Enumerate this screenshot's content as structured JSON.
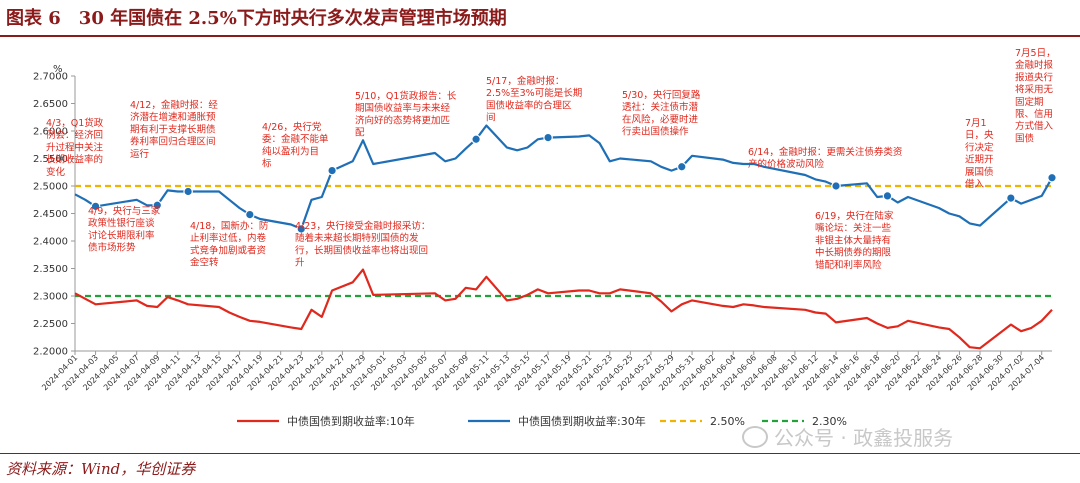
{
  "figure": {
    "title": "图表 6　30 年国债在 2.5%下方时央行多次发声管理市场预期",
    "source": "资料来源：Wind，华创证券",
    "watermark": "公众号 · 政鑫投服务"
  },
  "colors": {
    "title": "#8b1a1a",
    "series_10y": "#e0281d",
    "series_30y": "#1f6fb7",
    "ref_250": "#f0b400",
    "ref_230": "#22a33a",
    "annotation": "#e0281d"
  },
  "chart_data": {
    "type": "line",
    "ylabel": "%",
    "ylim": [
      2.2,
      2.7
    ],
    "yticks": [
      "2.2000",
      "2.2500",
      "2.3000",
      "2.3500",
      "2.4000",
      "2.4500",
      "2.5000",
      "2.5500",
      "2.6000",
      "2.6500",
      "2.7000"
    ],
    "xlim": [
      "2024-04-01",
      "2024-07-05"
    ],
    "xticks": [
      "2024-04-01",
      "2024-04-03",
      "2024-04-05",
      "2024-04-07",
      "2024-04-09",
      "2024-04-11",
      "2024-04-13",
      "2024-04-15",
      "2024-04-17",
      "2024-04-19",
      "2024-04-21",
      "2024-04-23",
      "2024-04-25",
      "2024-04-27",
      "2024-04-29",
      "2024-05-01",
      "2024-05-03",
      "2024-05-05",
      "2024-05-07",
      "2024-05-09",
      "2024-05-11",
      "2024-05-13",
      "2024-05-15",
      "2024-05-17",
      "2024-05-19",
      "2024-05-21",
      "2024-05-23",
      "2024-05-25",
      "2024-05-27",
      "2024-05-29",
      "2024-05-31",
      "2024-06-02",
      "2024-06-04",
      "2024-06-06",
      "2024-06-08",
      "2024-06-10",
      "2024-06-12",
      "2024-06-14",
      "2024-06-16",
      "2024-06-18",
      "2024-06-20",
      "2024-06-22",
      "2024-06-24",
      "2024-06-26",
      "2024-06-28",
      "2024-06-30",
      "2024-07-02",
      "2024-07-04"
    ],
    "grid": false,
    "legend_position": "bottom",
    "series": [
      {
        "name": "中债国债到期收益率:10年",
        "color": "#e0281d",
        "x": [
          "2024-04-01",
          "2024-04-02",
          "2024-04-03",
          "2024-04-07",
          "2024-04-08",
          "2024-04-09",
          "2024-04-10",
          "2024-04-11",
          "2024-04-12",
          "2024-04-15",
          "2024-04-16",
          "2024-04-17",
          "2024-04-18",
          "2024-04-19",
          "2024-04-22",
          "2024-04-23",
          "2024-04-24",
          "2024-04-25",
          "2024-04-26",
          "2024-04-28",
          "2024-04-29",
          "2024-04-30",
          "2024-05-06",
          "2024-05-07",
          "2024-05-08",
          "2024-05-09",
          "2024-05-10",
          "2024-05-11",
          "2024-05-13",
          "2024-05-14",
          "2024-05-15",
          "2024-05-16",
          "2024-05-17",
          "2024-05-20",
          "2024-05-21",
          "2024-05-22",
          "2024-05-23",
          "2024-05-24",
          "2024-05-27",
          "2024-05-28",
          "2024-05-29",
          "2024-05-30",
          "2024-05-31",
          "2024-06-03",
          "2024-06-04",
          "2024-06-05",
          "2024-06-06",
          "2024-06-07",
          "2024-06-11",
          "2024-06-12",
          "2024-06-13",
          "2024-06-14",
          "2024-06-17",
          "2024-06-18",
          "2024-06-19",
          "2024-06-20",
          "2024-06-21",
          "2024-06-24",
          "2024-06-25",
          "2024-06-26",
          "2024-06-27",
          "2024-06-28",
          "2024-07-01",
          "2024-07-02",
          "2024-07-03",
          "2024-07-04",
          "2024-07-05"
        ],
        "values": [
          2.305,
          2.295,
          2.285,
          2.292,
          2.282,
          2.28,
          2.298,
          2.292,
          2.285,
          2.28,
          2.27,
          2.262,
          2.255,
          2.253,
          2.243,
          2.24,
          2.275,
          2.262,
          2.31,
          2.325,
          2.348,
          2.302,
          2.305,
          2.292,
          2.295,
          2.315,
          2.312,
          2.335,
          2.292,
          2.295,
          2.302,
          2.312,
          2.305,
          2.31,
          2.31,
          2.305,
          2.305,
          2.312,
          2.305,
          2.29,
          2.272,
          2.285,
          2.292,
          2.282,
          2.28,
          2.285,
          2.283,
          2.28,
          2.275,
          2.27,
          2.268,
          2.252,
          2.26,
          2.25,
          2.242,
          2.245,
          2.255,
          2.243,
          2.24,
          2.225,
          2.207,
          2.205,
          2.248,
          2.236,
          2.242,
          2.255,
          2.275
        ]
      },
      {
        "name": "中债国债到期收益率:30年",
        "color": "#1f6fb7",
        "x": [
          "2024-04-01",
          "2024-04-02",
          "2024-04-03",
          "2024-04-07",
          "2024-04-08",
          "2024-04-09",
          "2024-04-10",
          "2024-04-11",
          "2024-04-12",
          "2024-04-15",
          "2024-04-16",
          "2024-04-17",
          "2024-04-18",
          "2024-04-19",
          "2024-04-22",
          "2024-04-23",
          "2024-04-24",
          "2024-04-25",
          "2024-04-26",
          "2024-04-28",
          "2024-04-29",
          "2024-04-30",
          "2024-05-06",
          "2024-05-07",
          "2024-05-08",
          "2024-05-09",
          "2024-05-10",
          "2024-05-11",
          "2024-05-13",
          "2024-05-14",
          "2024-05-15",
          "2024-05-16",
          "2024-05-17",
          "2024-05-20",
          "2024-05-21",
          "2024-05-22",
          "2024-05-23",
          "2024-05-24",
          "2024-05-27",
          "2024-05-28",
          "2024-05-29",
          "2024-05-30",
          "2024-05-31",
          "2024-06-03",
          "2024-06-04",
          "2024-06-05",
          "2024-06-06",
          "2024-06-07",
          "2024-06-11",
          "2024-06-12",
          "2024-06-13",
          "2024-06-14",
          "2024-06-17",
          "2024-06-18",
          "2024-06-19",
          "2024-06-20",
          "2024-06-21",
          "2024-06-24",
          "2024-06-25",
          "2024-06-26",
          "2024-06-27",
          "2024-06-28",
          "2024-07-01",
          "2024-07-02",
          "2024-07-03",
          "2024-07-04",
          "2024-07-05"
        ],
        "values": [
          2.485,
          2.475,
          2.463,
          2.475,
          2.465,
          2.465,
          2.492,
          2.49,
          2.49,
          2.49,
          2.475,
          2.46,
          2.448,
          2.44,
          2.43,
          2.422,
          2.475,
          2.48,
          2.528,
          2.545,
          2.583,
          2.54,
          2.56,
          2.545,
          2.55,
          2.568,
          2.585,
          2.61,
          2.57,
          2.565,
          2.57,
          2.585,
          2.588,
          2.59,
          2.592,
          2.578,
          2.545,
          2.55,
          2.545,
          2.535,
          2.528,
          2.535,
          2.555,
          2.548,
          2.542,
          2.54,
          2.54,
          2.535,
          2.52,
          2.512,
          2.508,
          2.5,
          2.505,
          2.48,
          2.482,
          2.47,
          2.48,
          2.46,
          2.45,
          2.445,
          2.432,
          2.428,
          2.478,
          2.468,
          2.475,
          2.482,
          2.515
        ]
      }
    ],
    "reference_lines": [
      {
        "name": "2.50%",
        "value": 2.5,
        "color": "#f0b400"
      },
      {
        "name": "2.30%",
        "value": 2.3,
        "color": "#22a33a"
      }
    ],
    "annotations": [
      {
        "id": "a0403",
        "series": 1,
        "date": "2024-04-03",
        "lines": [
          "4/3，Q1货政",
          "例会：经济回",
          "升过程中关注",
          "长期收益率的",
          "变化"
        ]
      },
      {
        "id": "a0409",
        "series": 1,
        "date": "2024-04-09",
        "lines": [
          "4/9，央行与三家",
          "政策性银行座谈",
          "讨论长期限利率",
          "债市场形势"
        ]
      },
      {
        "id": "a0412",
        "series": 1,
        "date": "2024-04-12",
        "lines": [
          "4/12，金融时报：经",
          "济潜在增速和通胀预",
          "期有利于支撑长期债",
          "券利率回归合理区间",
          "运行"
        ]
      },
      {
        "id": "a0418",
        "series": 1,
        "date": "2024-04-18",
        "lines": [
          "4/18，国新办：防",
          "止利率过低，内卷",
          "式竞争加剧或者资",
          "金空转"
        ]
      },
      {
        "id": "a0423",
        "series": 1,
        "date": "2024-04-23",
        "lines": [
          "4/23，央行接受金融时报采访：",
          "随着未来超长期特别国债的发",
          "行，长期国债收益率也将出现回",
          "升"
        ]
      },
      {
        "id": "a0426",
        "series": 1,
        "date": "2024-04-26",
        "lines": [
          "4/26，央行党",
          "委：金融不能单",
          "纯以盈利为目",
          "标"
        ]
      },
      {
        "id": "a0510",
        "series": 1,
        "date": "2024-05-10",
        "lines": [
          "5/10，Q1货政报告：长",
          "期国债收益率与未来经",
          "济向好的态势将更加匹",
          "配"
        ]
      },
      {
        "id": "a0517",
        "series": 1,
        "date": "2024-05-17",
        "lines": [
          "5/17，金融时报：",
          "2.5%至3%可能是长期",
          "国债收益率的合理区",
          "间"
        ]
      },
      {
        "id": "a0530",
        "series": 1,
        "date": "2024-05-30",
        "lines": [
          "5/30，央行回复路",
          "透社：关注债市潜",
          "在风险，必要时进",
          "行卖出国债操作"
        ]
      },
      {
        "id": "a0614",
        "series": 1,
        "date": "2024-06-14",
        "lines": [
          "6/14，金融时报：更需关注债券类资",
          "产的价格波动风险"
        ]
      },
      {
        "id": "a0619",
        "series": 1,
        "date": "2024-06-19",
        "lines": [
          "6/19，央行在陆家",
          "嘴论坛：关注一些",
          "非银主体大量持有",
          "中长期债券的期限",
          "错配和利率风险"
        ]
      },
      {
        "id": "a0701",
        "series": 1,
        "date": "2024-07-01",
        "lines": [
          "7月1",
          "日，央",
          "行决定",
          "近期开",
          "展国债",
          "借入"
        ]
      },
      {
        "id": "a0705",
        "series": 1,
        "date": "2024-07-05",
        "lines": [
          "7月5日，",
          "金融时报",
          "报道央行",
          "将采用无",
          "固定期",
          "限、信用",
          "方式借入",
          "国债"
        ]
      }
    ]
  }
}
